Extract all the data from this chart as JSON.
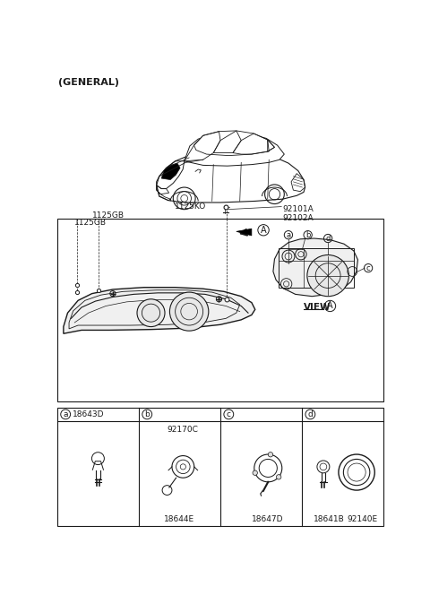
{
  "title": "(GENERAL)",
  "bg_color": "#ffffff",
  "line_color": "#1a1a1a",
  "labels": {
    "bolt_ko": "1125KO",
    "bolt_gb1": "1125GB",
    "bolt_gb2": "1125GB",
    "assy": "92101A\n92102A",
    "view": "VIEW",
    "view_circle": "A",
    "arrow_circle": "A",
    "a_code": "18643D",
    "b_code_top": "92170C",
    "b_code_bot": "18644E",
    "c_code": "18647D",
    "d_code_left": "18641B",
    "d_code_right": "92140E"
  },
  "circle_labels": [
    "a",
    "b",
    "c",
    "d"
  ],
  "layout": {
    "fig_w": 4.8,
    "fig_h": 6.64,
    "dpi": 100
  }
}
